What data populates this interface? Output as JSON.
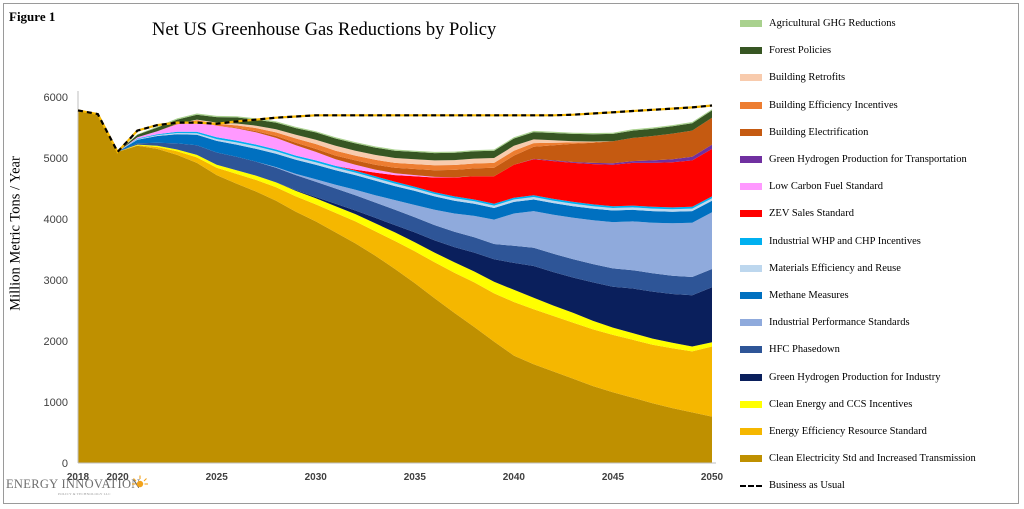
{
  "figure_label": "Figure 1",
  "logo": {
    "name": "ENERGY INNOVATION",
    "tagline": "POLICY & TECHNOLOGY LLC",
    "icon": "sun-logo-icon"
  },
  "chart_data": {
    "type": "area",
    "title": "Net US Greenhouse Gas Reductions by Policy",
    "xlabel": "",
    "ylabel": "Million Metric Tons / Year",
    "xlim": [
      2018,
      2050
    ],
    "ylim": [
      0,
      6000
    ],
    "yticks": [
      0,
      1000,
      2000,
      3000,
      4000,
      5000,
      6000
    ],
    "xtick_labels": [
      "2018",
      "2020",
      "2025",
      "2030",
      "2035",
      "2040",
      "2045",
      "2050"
    ],
    "grid": false,
    "legend_position": "right",
    "x": [
      2018,
      2019,
      2020,
      2021,
      2022,
      2023,
      2024,
      2025,
      2026,
      2027,
      2028,
      2029,
      2030,
      2031,
      2032,
      2033,
      2034,
      2035,
      2036,
      2037,
      2038,
      2039,
      2040,
      2041,
      2042,
      2043,
      2044,
      2045,
      2046,
      2047,
      2048,
      2049,
      2050
    ],
    "series": [
      {
        "name": "Clean Electricity Std and Increased Transmission",
        "color": "#bf9000",
        "values": [
          5780,
          5720,
          5100,
          5200,
          5150,
          5050,
          4920,
          4720,
          4580,
          4450,
          4300,
          4120,
          3960,
          3780,
          3600,
          3400,
          3180,
          2950,
          2700,
          2460,
          2230,
          1990,
          1760,
          1620,
          1500,
          1380,
          1260,
          1160,
          1070,
          980,
          900,
          830,
          760
        ]
      },
      {
        "name": "Energy Efficiency Resource Standard",
        "color": "#f5b700",
        "values": [
          0,
          0,
          0,
          10,
          30,
          60,
          90,
          120,
          160,
          190,
          220,
          250,
          280,
          320,
          360,
          400,
          460,
          520,
          590,
          660,
          730,
          790,
          880,
          900,
          910,
          920,
          930,
          940,
          950,
          960,
          980,
          1000,
          1150
        ]
      },
      {
        "name": "Clean Energy and CCS Incentives",
        "color": "#ffff00",
        "values": [
          0,
          0,
          0,
          10,
          20,
          30,
          40,
          50,
          60,
          70,
          80,
          90,
          100,
          110,
          120,
          130,
          140,
          150,
          160,
          170,
          180,
          190,
          200,
          190,
          170,
          160,
          140,
          120,
          110,
          100,
          90,
          80,
          70
        ]
      },
      {
        "name": "Green Hydrogen Production for Industry",
        "color": "#0a1f5c",
        "values": [
          0,
          0,
          0,
          0,
          0,
          0,
          0,
          0,
          0,
          0,
          0,
          10,
          20,
          40,
          60,
          90,
          120,
          160,
          200,
          250,
          310,
          370,
          440,
          520,
          550,
          580,
          630,
          670,
          730,
          770,
          800,
          840,
          900
        ]
      },
      {
        "name": "HFC Phasedown",
        "color": "#2e5597",
        "values": [
          0,
          0,
          0,
          20,
          50,
          100,
          160,
          200,
          220,
          230,
          240,
          250,
          250,
          250,
          250,
          250,
          250,
          250,
          250,
          250,
          250,
          250,
          280,
          300,
          300,
          300,
          300,
          300,
          300,
          300,
          300,
          300,
          300
        ]
      },
      {
        "name": "Industrial Performance Standards",
        "color": "#8faadc",
        "values": [
          0,
          0,
          0,
          0,
          0,
          0,
          0,
          0,
          0,
          0,
          10,
          20,
          40,
          60,
          90,
          120,
          160,
          200,
          250,
          300,
          350,
          400,
          530,
          600,
          640,
          680,
          720,
          760,
          800,
          830,
          860,
          890,
          930
        ]
      },
      {
        "name": "Methane Measures",
        "color": "#0070c0",
        "values": [
          0,
          0,
          0,
          60,
          110,
          150,
          170,
          190,
          200,
          210,
          220,
          230,
          240,
          240,
          240,
          240,
          230,
          230,
          220,
          210,
          200,
          190,
          190,
          190,
          190,
          190,
          190,
          190,
          190,
          190,
          190,
          190,
          190
        ]
      },
      {
        "name": "Materials Efficiency and Reuse",
        "color": "#bdd7ee",
        "values": [
          0,
          0,
          0,
          10,
          15,
          20,
          25,
          30,
          35,
          40,
          40,
          40,
          40,
          40,
          40,
          40,
          40,
          40,
          40,
          40,
          40,
          40,
          40,
          40,
          40,
          40,
          40,
          40,
          40,
          40,
          40,
          40,
          40
        ]
      },
      {
        "name": "Industrial WHP and CHP Incentives",
        "color": "#00b0f0",
        "values": [
          0,
          0,
          0,
          10,
          15,
          20,
          25,
          30,
          30,
          30,
          30,
          30,
          30,
          30,
          30,
          30,
          30,
          30,
          30,
          30,
          30,
          30,
          30,
          30,
          30,
          30,
          30,
          30,
          30,
          30,
          30,
          30,
          30
        ]
      },
      {
        "name": "ZEV Sales Standard",
        "color": "#ff0000",
        "values": [
          0,
          0,
          0,
          0,
          0,
          0,
          0,
          0,
          0,
          0,
          0,
          0,
          0,
          0,
          20,
          60,
          110,
          170,
          240,
          310,
          380,
          450,
          540,
          590,
          620,
          640,
          660,
          680,
          700,
          720,
          740,
          760,
          780
        ]
      },
      {
        "name": "Low Carbon Fuel Standard",
        "color": "#ff99ff",
        "values": [
          0,
          0,
          0,
          20,
          50,
          120,
          170,
          190,
          200,
          200,
          190,
          170,
          140,
          110,
          80,
          50,
          30,
          20,
          10,
          5,
          0,
          0,
          0,
          0,
          0,
          0,
          0,
          0,
          0,
          0,
          0,
          0,
          0
        ]
      },
      {
        "name": "Green Hydrogen Production for Transportation",
        "color": "#7030a0",
        "values": [
          0,
          0,
          0,
          0,
          0,
          0,
          0,
          0,
          0,
          0,
          0,
          0,
          0,
          0,
          0,
          0,
          0,
          0,
          0,
          0,
          0,
          0,
          0,
          5,
          10,
          15,
          20,
          25,
          30,
          40,
          50,
          60,
          70
        ]
      },
      {
        "name": "Building Electrification",
        "color": "#c55a11",
        "values": [
          0,
          0,
          0,
          0,
          0,
          0,
          0,
          0,
          10,
          20,
          30,
          40,
          50,
          60,
          70,
          80,
          90,
          100,
          110,
          120,
          130,
          140,
          150,
          200,
          250,
          300,
          330,
          360,
          380,
          400,
          420,
          430,
          440
        ]
      },
      {
        "name": "Building Efficiency Incentives",
        "color": "#ed7d31",
        "values": [
          0,
          0,
          0,
          0,
          0,
          10,
          20,
          30,
          40,
          50,
          60,
          70,
          80,
          80,
          80,
          80,
          80,
          80,
          80,
          80,
          80,
          80,
          80,
          60,
          40,
          20,
          10,
          0,
          0,
          0,
          0,
          0,
          0
        ]
      },
      {
        "name": "Building Retrofits",
        "color": "#f8cbad",
        "values": [
          0,
          0,
          0,
          0,
          0,
          0,
          10,
          20,
          30,
          40,
          50,
          60,
          70,
          80,
          80,
          80,
          80,
          80,
          80,
          80,
          80,
          80,
          80,
          60,
          40,
          20,
          10,
          0,
          0,
          0,
          0,
          0,
          0
        ]
      },
      {
        "name": "Forest Policies",
        "color": "#375623",
        "values": [
          0,
          0,
          0,
          40,
          60,
          70,
          80,
          90,
          100,
          100,
          110,
          110,
          120,
          120,
          120,
          120,
          120,
          120,
          120,
          120,
          120,
          120,
          120,
          120,
          120,
          120,
          120,
          120,
          120,
          120,
          120,
          120,
          120
        ]
      },
      {
        "name": "Agricultural GHG Reductions",
        "color": "#a9d18e",
        "values": [
          0,
          0,
          0,
          10,
          15,
          20,
          20,
          20,
          20,
          20,
          20,
          20,
          20,
          20,
          20,
          20,
          20,
          20,
          20,
          20,
          20,
          20,
          20,
          20,
          20,
          20,
          20,
          20,
          20,
          20,
          20,
          20,
          20
        ]
      },
      {
        "name": "Business as Usual",
        "color": "#000000",
        "style": "dashed",
        "values": [
          5780,
          5720,
          5100,
          5450,
          5540,
          5580,
          5580,
          5560,
          5600,
          5630,
          5660,
          5680,
          5700,
          5700,
          5700,
          5700,
          5700,
          5700,
          5700,
          5700,
          5700,
          5700,
          5700,
          5700,
          5700,
          5710,
          5730,
          5750,
          5770,
          5790,
          5810,
          5830,
          5860
        ]
      }
    ]
  }
}
